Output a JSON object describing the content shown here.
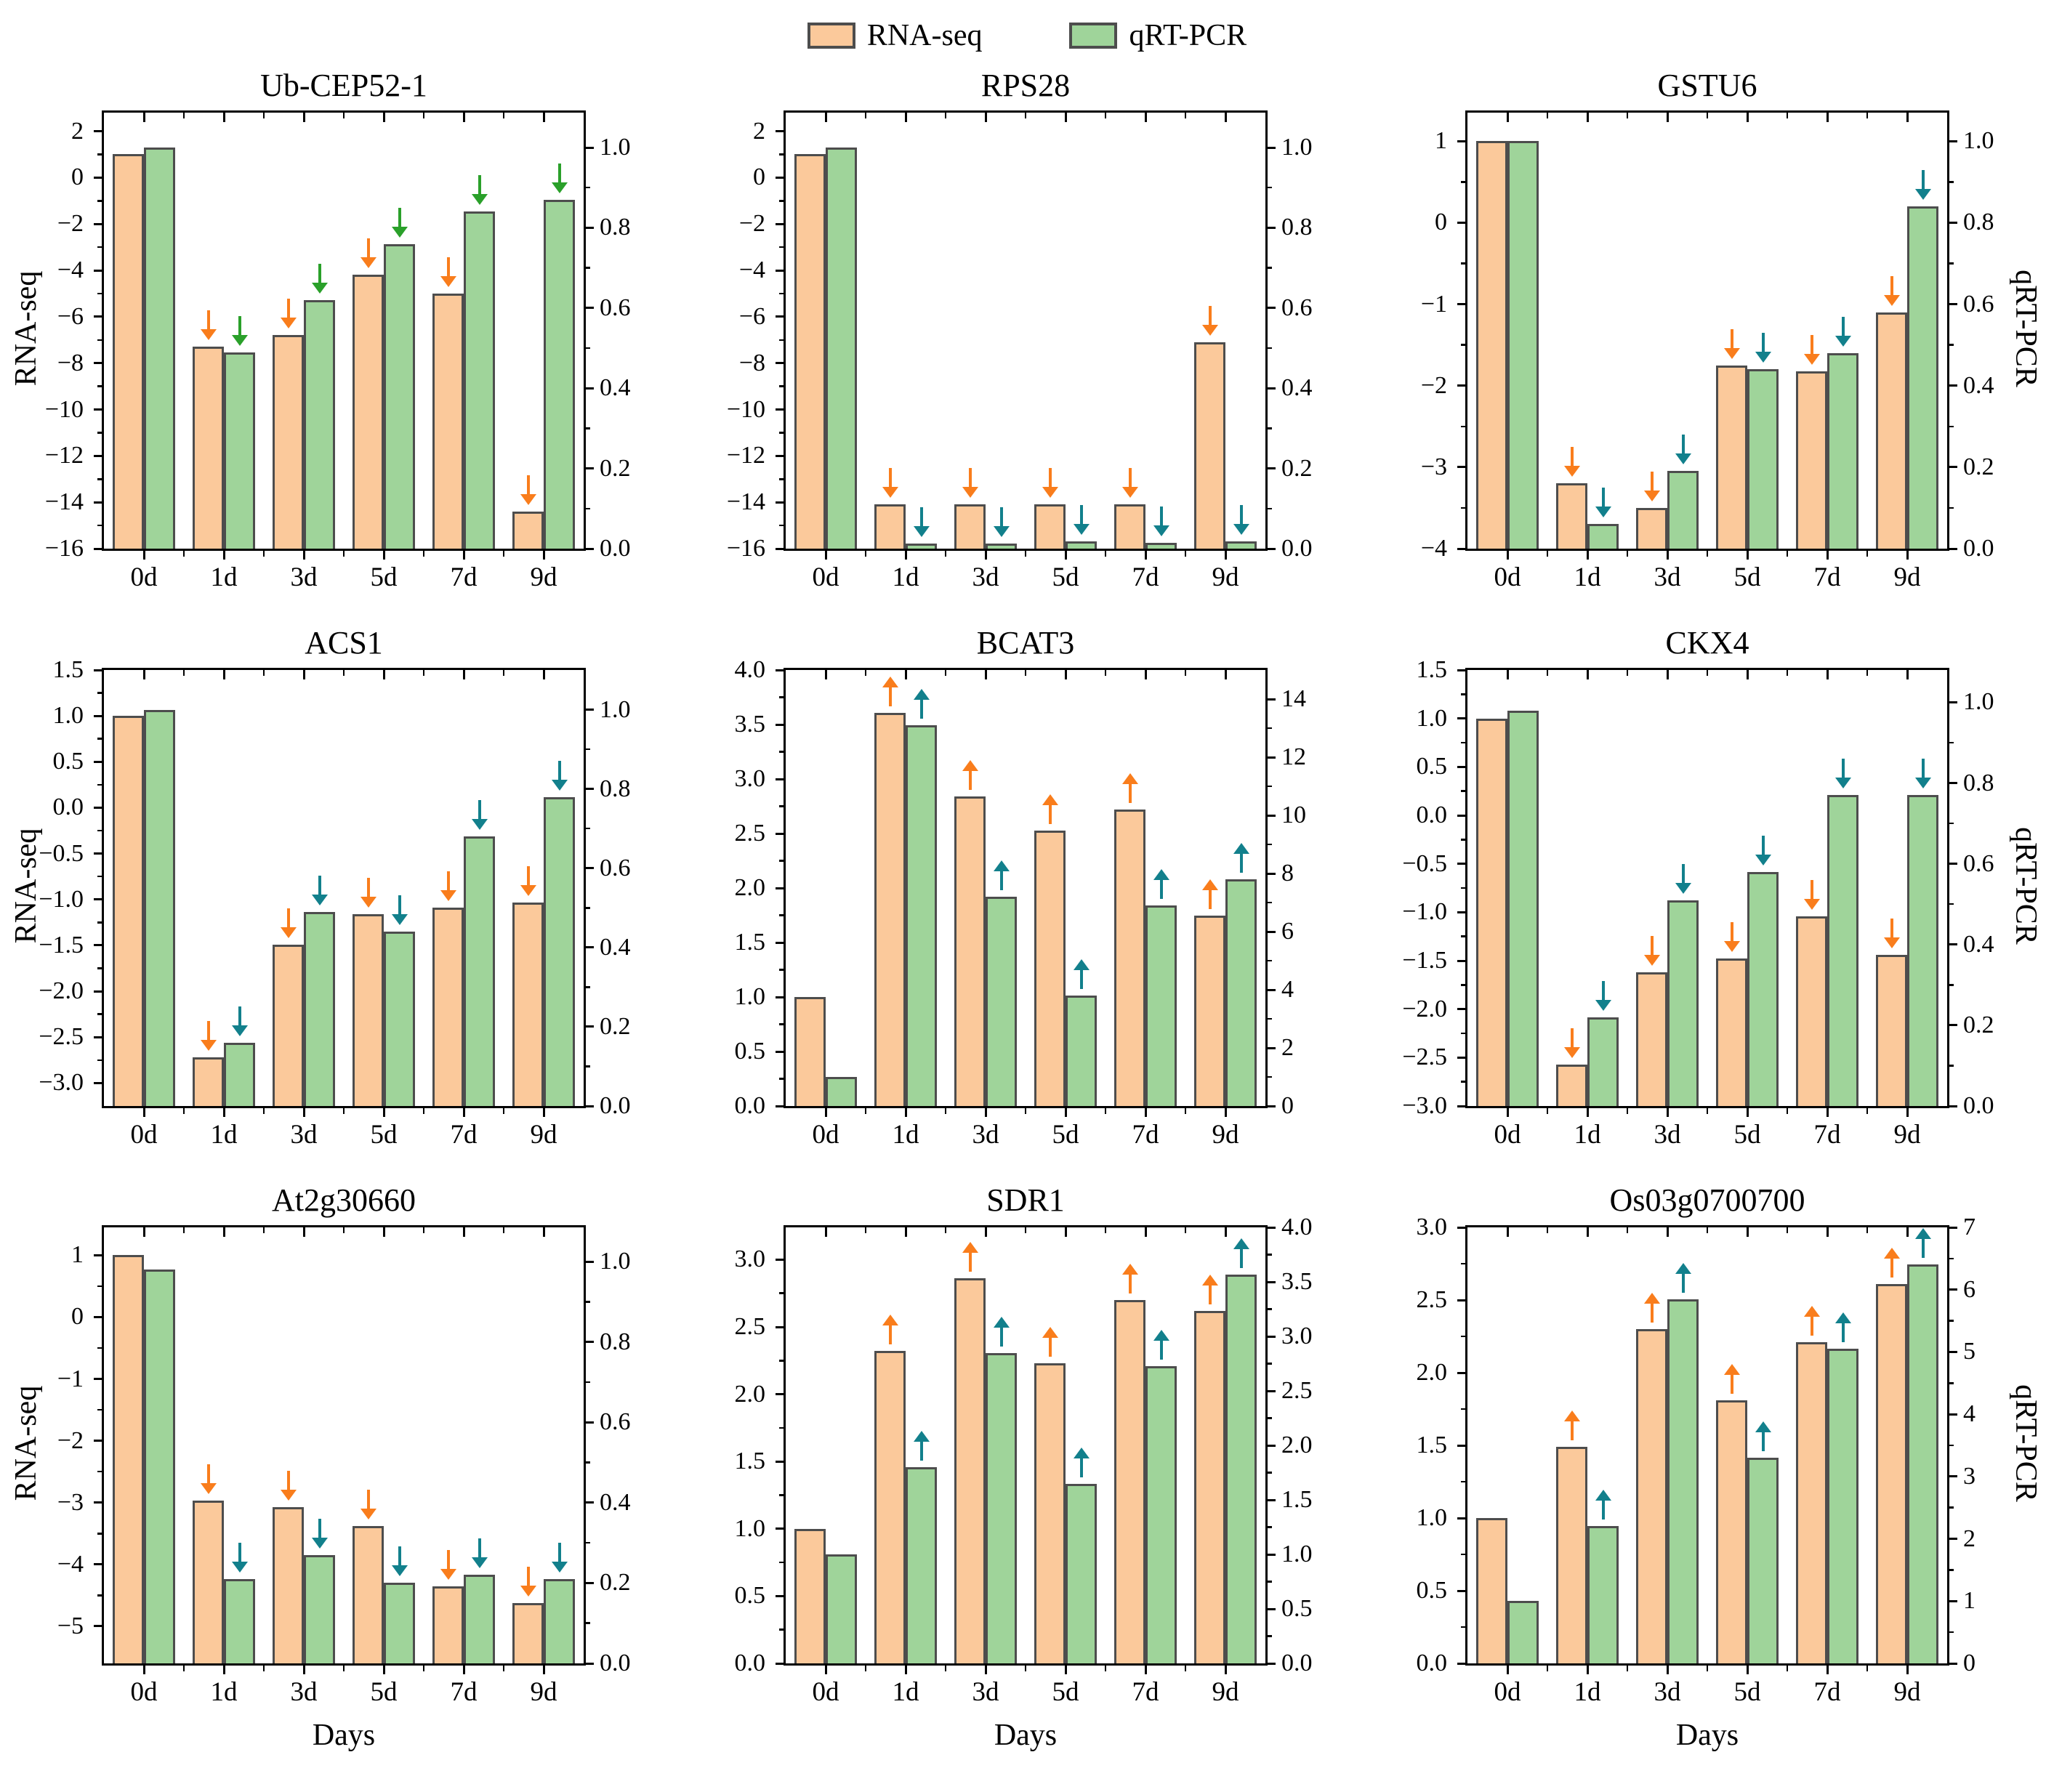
{
  "legend": {
    "items": [
      {
        "label": "RNA-seq",
        "color": "#FBC99B",
        "border": "#4D4D4D"
      },
      {
        "label": "qRT-PCR",
        "color": "#9FD49A",
        "border": "#4D4D4D"
      }
    ]
  },
  "shared": {
    "categories": [
      "0d",
      "1d",
      "3d",
      "5d",
      "7d",
      "9d"
    ],
    "xlabel": "Days",
    "left_axis_title": "RNA-seq",
    "right_axis_title": "qRT-PCR",
    "colors": {
      "rna_bar": "#FBC99B",
      "qpcr_bar": "#9FD49A",
      "bar_edge": "#4D4D4D",
      "rna_arrow": "#F97D1C",
      "qpcr_arrow_teal": "#12808C",
      "qpcr_arrow_green": "#2AA02A",
      "axis": "#000000"
    }
  },
  "chart_data": [
    {
      "title": "Ub-CEP52-1",
      "type": "bar",
      "categories": [
        "0d",
        "1d",
        "3d",
        "5d",
        "7d",
        "9d"
      ],
      "series": [
        {
          "name": "RNA-seq",
          "axis": "left",
          "values": [
            1.0,
            -7.3,
            -6.8,
            -4.2,
            -5.0,
            -14.4
          ]
        },
        {
          "name": "qRT-PCR",
          "axis": "right",
          "values": [
            1.0,
            0.49,
            0.62,
            0.76,
            0.84,
            0.87
          ]
        }
      ],
      "left_axis": {
        "min": -16,
        "max": 2.8,
        "ticks": [
          [
            2,
            "2"
          ],
          [
            0,
            "0"
          ],
          [
            -2,
            "−2"
          ],
          [
            -4,
            "−4"
          ],
          [
            -6,
            "−6"
          ],
          [
            -8,
            "−8"
          ],
          [
            -10,
            "−10"
          ],
          [
            -12,
            "−12"
          ],
          [
            -14,
            "−14"
          ],
          [
            -16,
            "−16"
          ]
        ]
      },
      "right_axis": {
        "min": 0,
        "max": 1.087,
        "ticks": [
          [
            1.0,
            "1.0"
          ],
          [
            0.8,
            "0.8"
          ],
          [
            0.6,
            "0.6"
          ],
          [
            0.4,
            "0.4"
          ],
          [
            0.2,
            "0.2"
          ],
          [
            0.0,
            "0.0"
          ]
        ]
      },
      "arrows": {
        "direction": "down",
        "per_category": [
          false,
          true,
          true,
          true,
          true,
          true
        ],
        "rna_color": "#F97D1C",
        "qpcr_color": "#2AA02A"
      },
      "show_left_title": true,
      "show_right_title": false,
      "show_xlabel": false
    },
    {
      "title": "RPS28",
      "type": "bar",
      "categories": [
        "0d",
        "1d",
        "3d",
        "5d",
        "7d",
        "9d"
      ],
      "series": [
        {
          "name": "RNA-seq",
          "axis": "left",
          "values": [
            1.0,
            -14.1,
            -14.1,
            -14.1,
            -14.1,
            -7.1
          ]
        },
        {
          "name": "qRT-PCR",
          "axis": "right",
          "values": [
            1.0,
            0.012,
            0.012,
            0.018,
            0.015,
            0.018
          ]
        }
      ],
      "left_axis": {
        "min": -16,
        "max": 2.8,
        "ticks": [
          [
            2,
            "2"
          ],
          [
            0,
            "0"
          ],
          [
            -2,
            "−2"
          ],
          [
            -4,
            "−4"
          ],
          [
            -6,
            "−6"
          ],
          [
            -8,
            "−8"
          ],
          [
            -10,
            "−10"
          ],
          [
            -12,
            "−12"
          ],
          [
            -14,
            "−14"
          ],
          [
            -16,
            "−16"
          ]
        ]
      },
      "right_axis": {
        "min": 0,
        "max": 1.087,
        "ticks": [
          [
            1.0,
            "1.0"
          ],
          [
            0.8,
            "0.8"
          ],
          [
            0.6,
            "0.6"
          ],
          [
            0.4,
            "0.4"
          ],
          [
            0.2,
            "0.2"
          ],
          [
            0.0,
            "0.0"
          ]
        ]
      },
      "arrows": {
        "direction": "down",
        "per_category": [
          false,
          true,
          true,
          true,
          true,
          true
        ],
        "rna_color": "#F97D1C",
        "qpcr_color": "#12808C"
      },
      "show_left_title": false,
      "show_right_title": false,
      "show_xlabel": false
    },
    {
      "title": "GSTU6",
      "type": "bar",
      "categories": [
        "0d",
        "1d",
        "3d",
        "5d",
        "7d",
        "9d"
      ],
      "series": [
        {
          "name": "RNA-seq",
          "axis": "left",
          "values": [
            1.0,
            -3.2,
            -3.5,
            -1.75,
            -1.82,
            -1.1
          ]
        },
        {
          "name": "qRT-PCR",
          "axis": "right",
          "values": [
            1.0,
            0.06,
            0.19,
            0.44,
            0.48,
            0.84
          ]
        }
      ],
      "left_axis": {
        "min": -4,
        "max": 1.35,
        "ticks": [
          [
            1,
            "1"
          ],
          [
            0,
            "0"
          ],
          [
            -1,
            "−1"
          ],
          [
            -2,
            "−2"
          ],
          [
            -3,
            "−3"
          ],
          [
            -4,
            "−4"
          ]
        ]
      },
      "right_axis": {
        "min": 0,
        "max": 1.07,
        "ticks": [
          [
            1.0,
            "1.0"
          ],
          [
            0.8,
            "0.8"
          ],
          [
            0.6,
            "0.6"
          ],
          [
            0.4,
            "0.4"
          ],
          [
            0.2,
            "0.2"
          ],
          [
            0.0,
            "0.0"
          ]
        ]
      },
      "arrows": {
        "direction": "down",
        "per_category": [
          false,
          true,
          true,
          true,
          true,
          true
        ],
        "rna_color": "#F97D1C",
        "qpcr_color": "#12808C"
      },
      "show_left_title": false,
      "show_right_title": true,
      "show_xlabel": false
    },
    {
      "title": "ACS1",
      "type": "bar",
      "categories": [
        "0d",
        "1d",
        "3d",
        "5d",
        "7d",
        "9d"
      ],
      "series": [
        {
          "name": "RNA-seq",
          "axis": "left",
          "values": [
            1.0,
            -2.72,
            -1.49,
            -1.16,
            -1.09,
            -1.03
          ]
        },
        {
          "name": "qRT-PCR",
          "axis": "right",
          "values": [
            1.0,
            0.16,
            0.49,
            0.44,
            0.68,
            0.78
          ]
        }
      ],
      "left_axis": {
        "min": -3.25,
        "max": 1.5,
        "ticks": [
          [
            1.5,
            "1.5"
          ],
          [
            1.0,
            "1.0"
          ],
          [
            0.5,
            "0.5"
          ],
          [
            0.0,
            "0.0"
          ],
          [
            -0.5,
            "−0.5"
          ],
          [
            -1.0,
            "−1.0"
          ],
          [
            -1.5,
            "−1.5"
          ],
          [
            -2.0,
            "−2.0"
          ],
          [
            -2.5,
            "−2.5"
          ],
          [
            -3.0,
            "−3.0"
          ]
        ]
      },
      "right_axis": {
        "min": 0,
        "max": 1.1,
        "ticks": [
          [
            1.0,
            "1.0"
          ],
          [
            0.8,
            "0.8"
          ],
          [
            0.6,
            "0.6"
          ],
          [
            0.4,
            "0.4"
          ],
          [
            0.2,
            "0.2"
          ],
          [
            0.0,
            "0.0"
          ]
        ]
      },
      "arrows": {
        "direction": "down",
        "per_category": [
          false,
          true,
          true,
          true,
          true,
          true
        ],
        "rna_color": "#F97D1C",
        "qpcr_color": "#12808C"
      },
      "show_left_title": true,
      "show_right_title": false,
      "show_xlabel": false
    },
    {
      "title": "BCAT3",
      "type": "bar",
      "categories": [
        "0d",
        "1d",
        "3d",
        "5d",
        "7d",
        "9d"
      ],
      "series": [
        {
          "name": "RNA-seq",
          "axis": "left",
          "values": [
            1.0,
            3.61,
            2.84,
            2.53,
            2.72,
            1.75
          ]
        },
        {
          "name": "qRT-PCR",
          "axis": "right",
          "values": [
            1.0,
            13.1,
            7.2,
            3.8,
            6.9,
            7.8
          ]
        }
      ],
      "left_axis": {
        "min": 0,
        "max": 4.0,
        "ticks": [
          [
            4.0,
            "4.0"
          ],
          [
            3.5,
            "3.5"
          ],
          [
            3.0,
            "3.0"
          ],
          [
            2.5,
            "2.5"
          ],
          [
            2.0,
            "2.0"
          ],
          [
            1.5,
            "1.5"
          ],
          [
            1.0,
            "1.0"
          ],
          [
            0.5,
            "0.5"
          ],
          [
            0.0,
            "0.0"
          ]
        ]
      },
      "right_axis": {
        "min": 0,
        "max": 15.0,
        "ticks": [
          [
            14,
            "14"
          ],
          [
            12,
            "12"
          ],
          [
            10,
            "10"
          ],
          [
            8,
            "8"
          ],
          [
            6,
            "6"
          ],
          [
            4,
            "4"
          ],
          [
            2,
            "2"
          ],
          [
            0,
            "0"
          ]
        ]
      },
      "arrows": {
        "direction": "up",
        "per_category": [
          false,
          true,
          true,
          true,
          true,
          true
        ],
        "rna_color": "#F97D1C",
        "qpcr_color": "#12808C"
      },
      "show_left_title": false,
      "show_right_title": false,
      "show_xlabel": false
    },
    {
      "title": "CKX4",
      "type": "bar",
      "categories": [
        "0d",
        "1d",
        "3d",
        "5d",
        "7d",
        "9d"
      ],
      "series": [
        {
          "name": "RNA-seq",
          "axis": "left",
          "values": [
            1.0,
            -2.57,
            -1.62,
            -1.48,
            -1.04,
            -1.44
          ]
        },
        {
          "name": "qRT-PCR",
          "axis": "right",
          "values": [
            0.98,
            0.22,
            0.51,
            0.58,
            0.77,
            0.77
          ]
        }
      ],
      "left_axis": {
        "min": -3.0,
        "max": 1.5,
        "ticks": [
          [
            1.5,
            "1.5"
          ],
          [
            1.0,
            "1.0"
          ],
          [
            0.5,
            "0.5"
          ],
          [
            0.0,
            "0.0"
          ],
          [
            -0.5,
            "−0.5"
          ],
          [
            -1.0,
            "−1.0"
          ],
          [
            -1.5,
            "−1.5"
          ],
          [
            -2.0,
            "−2.0"
          ],
          [
            -2.5,
            "−2.5"
          ],
          [
            -3.0,
            "−3.0"
          ]
        ]
      },
      "right_axis": {
        "min": 0,
        "max": 1.08,
        "ticks": [
          [
            1.0,
            "1.0"
          ],
          [
            0.8,
            "0.8"
          ],
          [
            0.6,
            "0.6"
          ],
          [
            0.4,
            "0.4"
          ],
          [
            0.2,
            "0.2"
          ],
          [
            0.0,
            "0.0"
          ]
        ]
      },
      "arrows": {
        "direction": "down",
        "per_category": [
          false,
          true,
          true,
          true,
          true,
          true
        ],
        "rna_color": "#F97D1C",
        "qpcr_color": "#12808C"
      },
      "show_left_title": false,
      "show_right_title": true,
      "show_xlabel": false
    },
    {
      "title": "At2g30660",
      "type": "bar",
      "categories": [
        "0d",
        "1d",
        "3d",
        "5d",
        "7d",
        "9d"
      ],
      "series": [
        {
          "name": "RNA-seq",
          "axis": "left",
          "values": [
            1.0,
            -2.97,
            -3.07,
            -3.38,
            -4.35,
            -4.63
          ]
        },
        {
          "name": "qRT-PCR",
          "axis": "right",
          "values": [
            0.98,
            0.21,
            0.27,
            0.2,
            0.22,
            0.21
          ]
        }
      ],
      "left_axis": {
        "min": -5.6,
        "max": 1.45,
        "ticks": [
          [
            1,
            "1"
          ],
          [
            0,
            "0"
          ],
          [
            -1,
            "−1"
          ],
          [
            -2,
            "−2"
          ],
          [
            -3,
            "−3"
          ],
          [
            -4,
            "−4"
          ],
          [
            -5,
            "−5"
          ]
        ]
      },
      "right_axis": {
        "min": 0,
        "max": 1.085,
        "ticks": [
          [
            1.0,
            "1.0"
          ],
          [
            0.8,
            "0.8"
          ],
          [
            0.6,
            "0.6"
          ],
          [
            0.4,
            "0.4"
          ],
          [
            0.2,
            "0.2"
          ],
          [
            0.0,
            "0.0"
          ]
        ]
      },
      "arrows": {
        "direction": "down",
        "per_category": [
          false,
          true,
          true,
          true,
          true,
          true
        ],
        "rna_color": "#F97D1C",
        "qpcr_color": "#12808C"
      },
      "show_left_title": true,
      "show_right_title": false,
      "show_xlabel": true
    },
    {
      "title": "SDR1",
      "type": "bar",
      "categories": [
        "0d",
        "1d",
        "3d",
        "5d",
        "7d",
        "9d"
      ],
      "series": [
        {
          "name": "RNA-seq",
          "axis": "left",
          "values": [
            1.0,
            2.32,
            2.86,
            2.23,
            2.7,
            2.62
          ]
        },
        {
          "name": "qRT-PCR",
          "axis": "right",
          "values": [
            1.0,
            1.8,
            2.85,
            1.65,
            2.73,
            3.57
          ]
        }
      ],
      "left_axis": {
        "min": 0,
        "max": 3.24,
        "ticks": [
          [
            3.0,
            "3.0"
          ],
          [
            2.5,
            "2.5"
          ],
          [
            2.0,
            "2.0"
          ],
          [
            1.5,
            "1.5"
          ],
          [
            1.0,
            "1.0"
          ],
          [
            0.5,
            "0.5"
          ],
          [
            0.0,
            "0.0"
          ]
        ]
      },
      "right_axis": {
        "min": 0,
        "max": 4.0,
        "ticks": [
          [
            4.0,
            "4.0"
          ],
          [
            3.5,
            "3.5"
          ],
          [
            3.0,
            "3.0"
          ],
          [
            2.5,
            "2.5"
          ],
          [
            2.0,
            "2.0"
          ],
          [
            1.5,
            "1.5"
          ],
          [
            1.0,
            "1.0"
          ],
          [
            0.5,
            "0.5"
          ],
          [
            0.0,
            "0.0"
          ]
        ]
      },
      "arrows": {
        "direction": "up",
        "per_category": [
          false,
          true,
          true,
          true,
          true,
          true
        ],
        "rna_color": "#F97D1C",
        "qpcr_color": "#12808C"
      },
      "show_left_title": false,
      "show_right_title": false,
      "show_xlabel": true
    },
    {
      "title": "Os03g0700700",
      "type": "bar",
      "categories": [
        "0d",
        "1d",
        "3d",
        "5d",
        "7d",
        "9d"
      ],
      "series": [
        {
          "name": "RNA-seq",
          "axis": "left",
          "values": [
            1.0,
            1.49,
            2.3,
            1.81,
            2.21,
            2.61
          ]
        },
        {
          "name": "qRT-PCR",
          "axis": "right",
          "values": [
            1.0,
            2.2,
            5.85,
            3.3,
            5.05,
            6.4
          ]
        }
      ],
      "left_axis": {
        "min": 0,
        "max": 3.0,
        "ticks": [
          [
            3.0,
            "3.0"
          ],
          [
            2.5,
            "2.5"
          ],
          [
            2.0,
            "2.0"
          ],
          [
            1.5,
            "1.5"
          ],
          [
            1.0,
            "1.0"
          ],
          [
            0.5,
            "0.5"
          ],
          [
            0.0,
            "0.0"
          ]
        ]
      },
      "right_axis": {
        "min": 0,
        "max": 7,
        "ticks": [
          [
            7,
            "7"
          ],
          [
            6,
            "6"
          ],
          [
            5,
            "5"
          ],
          [
            4,
            "4"
          ],
          [
            3,
            "3"
          ],
          [
            2,
            "2"
          ],
          [
            1,
            "1"
          ],
          [
            0,
            "0"
          ]
        ]
      },
      "arrows": {
        "direction": "up",
        "per_category": [
          false,
          true,
          true,
          true,
          true,
          true
        ],
        "rna_color": "#F97D1C",
        "qpcr_color": "#12808C"
      },
      "show_left_title": false,
      "show_right_title": true,
      "show_xlabel": true
    }
  ]
}
